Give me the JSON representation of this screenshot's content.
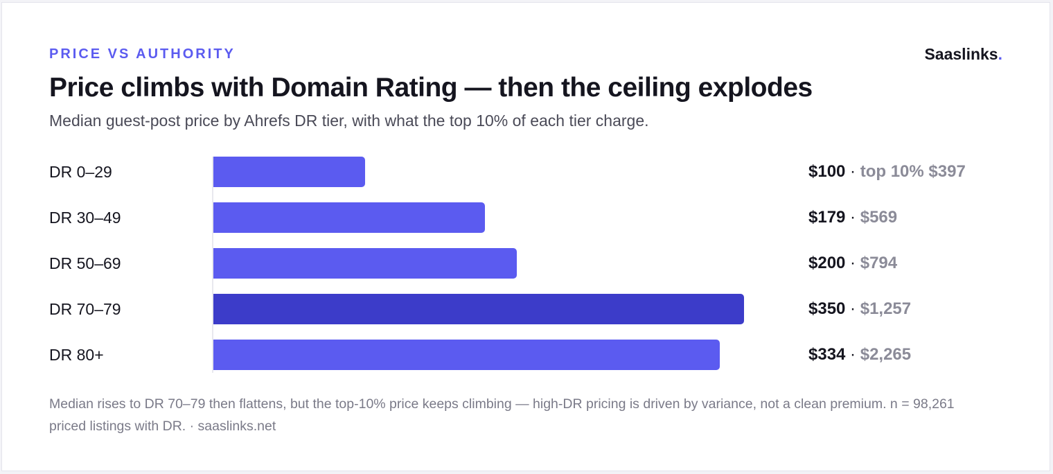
{
  "header": {
    "eyebrow": "PRICE VS AUTHORITY",
    "brand_name": "Saaslinks",
    "brand_dot": ".",
    "title": "Price climbs with Domain Rating — then the ceiling explodes",
    "subtitle": "Median guest-post price by Ahrefs DR tier, with what the top 10% of each tier charge."
  },
  "colors": {
    "accent": "#5b5bf0",
    "highlight": "#3c3cc9",
    "muted": "#8b8b98"
  },
  "chart_data": {
    "type": "bar",
    "orientation": "horizontal",
    "categories": [
      "DR 0–29",
      "DR 30–49",
      "DR 50–69",
      "DR 70–79",
      "DR 80+"
    ],
    "series": [
      {
        "values": [
          100,
          179,
          200,
          350,
          334
        ]
      },
      {
        "values": [
          397,
          569,
          794,
          1257,
          2265
        ]
      }
    ],
    "highlight_category": "DR 70–79",
    "xlim": [
      0,
      350
    ],
    "value_labels": [
      {
        "median": "$100",
        "separator": " · ",
        "top": "top 10% $397"
      },
      {
        "median": "$179",
        "separator": " · ",
        "top": "$569"
      },
      {
        "median": "$200",
        "separator": " · ",
        "top": "$794"
      },
      {
        "median": "$350",
        "separator": " · ",
        "top": "$1,257"
      },
      {
        "median": "$334",
        "separator": " · ",
        "top": "$2,265"
      }
    ]
  },
  "footnote": "Median rises to DR 70–79 then flattens, but the top-10% price keeps climbing — high-DR pricing is driven by variance, not a clean premium. n = 98,261 priced listings with DR. · saaslinks.net"
}
